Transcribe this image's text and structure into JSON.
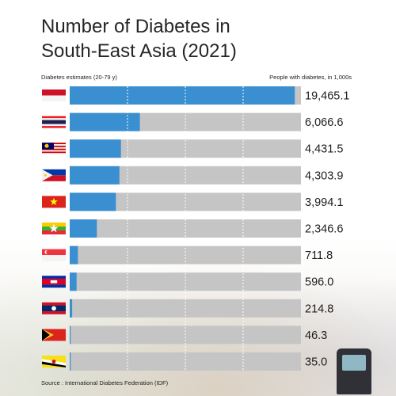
{
  "title": "Number of Diabetes in\nSouth-East Asia (2021)",
  "left_header": "Diabetes estimates (20-79 y)",
  "right_header": "People with diabetes, in 1,000s",
  "source": "Source : International Diabetes Federation (IDF)",
  "colors": {
    "bar": "#3a8fd1",
    "track": "#c5c5c5",
    "grid": "#ffffff"
  },
  "chart_data": {
    "type": "bar",
    "orientation": "horizontal",
    "title": "Number of Diabetes in South-East Asia (2021)",
    "categories": [
      "Indonesia",
      "Thailand",
      "Malaysia",
      "Philippines",
      "Vietnam",
      "Myanmar",
      "Singapore",
      "Cambodia",
      "Laos",
      "Timor-Leste",
      "Brunei"
    ],
    "values": [
      19465.1,
      6066.6,
      4431.5,
      4303.9,
      3994.1,
      2346.6,
      711.8,
      596.0,
      214.8,
      46.3,
      35.0
    ],
    "labels": [
      "19,465.1",
      "6,066.6",
      "4,431.5",
      "4,303.9",
      "3,994.1",
      "2,346.6",
      "711.8",
      "596.0",
      "214.8",
      "46.3",
      "35.0"
    ],
    "flags": [
      "indonesia-flag",
      "thailand-flag",
      "malaysia-flag",
      "philippines-flag",
      "vietnam-flag",
      "myanmar-flag",
      "singapore-flag",
      "cambodia-flag",
      "laos-flag",
      "timor-leste-flag",
      "brunei-flag"
    ],
    "xlim": [
      0,
      20000
    ],
    "grid": true,
    "unit": "People with diabetes, in 1,000s"
  }
}
